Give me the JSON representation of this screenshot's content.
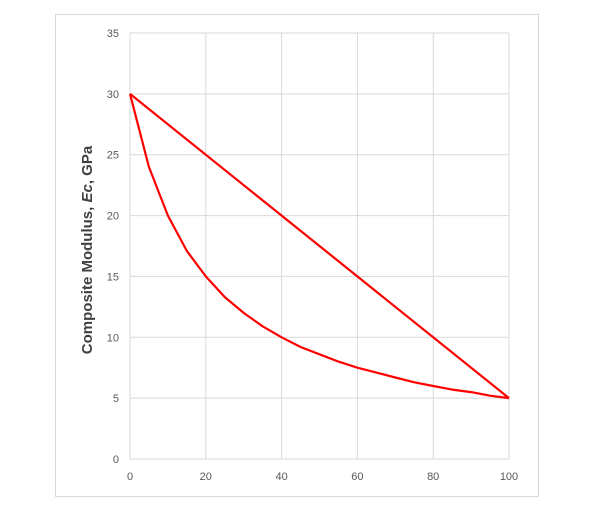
{
  "chart_data": {
    "type": "line",
    "title": "",
    "xlabel": "",
    "ylabel": "Composite Modulus, Ec, GPa",
    "xlim": [
      0,
      100
    ],
    "ylim": [
      0,
      35
    ],
    "x_ticks": [
      0,
      20,
      40,
      60,
      80,
      100
    ],
    "y_ticks": [
      0,
      5,
      10,
      15,
      20,
      25,
      30,
      35
    ],
    "grid": true,
    "series": [
      {
        "values_x": [
          0,
          100
        ],
        "values_y": [
          30,
          5
        ],
        "color": "#ff0000"
      },
      {
        "values_x": [
          0,
          5,
          10,
          15,
          20,
          25,
          30,
          35,
          40,
          45,
          50,
          55,
          60,
          65,
          70,
          75,
          80,
          85,
          90,
          95,
          100
        ],
        "values_y": [
          30,
          24,
          20,
          17.1,
          15,
          13.3,
          12,
          10.9,
          10,
          9.2,
          8.6,
          8,
          7.5,
          7.1,
          6.7,
          6.3,
          6,
          5.7,
          5.5,
          5.2,
          5
        ],
        "color": "#ff0000"
      }
    ]
  }
}
